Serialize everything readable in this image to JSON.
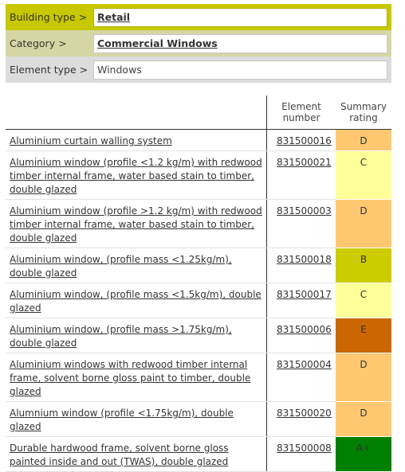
{
  "breadcrumb": {
    "building_type_label": "Building type >",
    "building_type_value": "Retail",
    "category_label": "Category >",
    "category_value": "Commercial Windows",
    "element_type_label": "Element type >",
    "element_type_value": "Windows"
  },
  "table": {
    "headers": {
      "element_number": "Element number",
      "summary_rating": "Summary rating"
    },
    "rows": [
      {
        "name": "Aluminium curtain walling system",
        "number": "831500016",
        "rating": "D",
        "color": "#ffc870"
      },
      {
        "name": "Aluminium window (profile <1.2 kg/m) with redwood timber internal frame, water based stain to timber, double glazed",
        "number": "831500021",
        "rating": "C",
        "color": "#ffff99"
      },
      {
        "name": "Aluminium window (profile >1.2 kg/m) with redwood timber internal frame, water based stain to timber, double glazed",
        "number": "831500003",
        "rating": "D",
        "color": "#ffc870"
      },
      {
        "name": "Aluminium window, (profile mass <1.25kg/m), double glazed",
        "number": "831500018",
        "rating": "B",
        "color": "#cccc00"
      },
      {
        "name": "Aluminium window, (profile mass <1.5kg/m), double glazed",
        "number": "831500017",
        "rating": "C",
        "color": "#ffff99"
      },
      {
        "name": "Aluminium window, (profile mass >1.75kg/m), double glazed",
        "number": "831500006",
        "rating": "E",
        "color": "#cc6600"
      },
      {
        "name": "Aluminium windows with redwood timber internal frame, solvent borne gloss paint to timber, double glazed",
        "number": "831500004",
        "rating": "D",
        "color": "#ffc870"
      },
      {
        "name": "Alumnium window (profile <1.75kg/m), double glazed",
        "number": "831500020",
        "rating": "D",
        "color": "#ffc870"
      },
      {
        "name": "Durable hardwood frame, solvent borne gloss painted inside and out (TWAS), double glazed",
        "number": "831500008",
        "rating": "A+",
        "color": "#008000"
      }
    ]
  }
}
